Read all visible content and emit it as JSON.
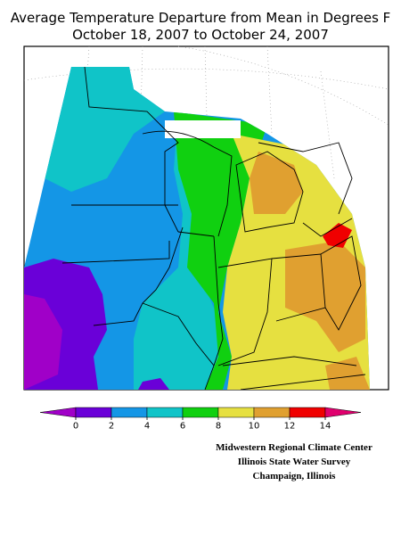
{
  "title": [
    "Average Temperature Departure from Mean in Degrees F",
    "October 18, 2007 to October 24, 2007"
  ],
  "colorbar": {
    "ticks": [
      0,
      2,
      4,
      6,
      8,
      10,
      12,
      14
    ],
    "colors": [
      "#a000c8",
      "#6a00d8",
      "#1496e6",
      "#10c4c8",
      "#10d010",
      "#e6e040",
      "#e0a030",
      "#f00000",
      "#e0006e"
    ]
  },
  "credits": [
    "Midwestern Regional Climate Center",
    "Illinois State Water Survey",
    "Champaign, Illinois"
  ]
}
